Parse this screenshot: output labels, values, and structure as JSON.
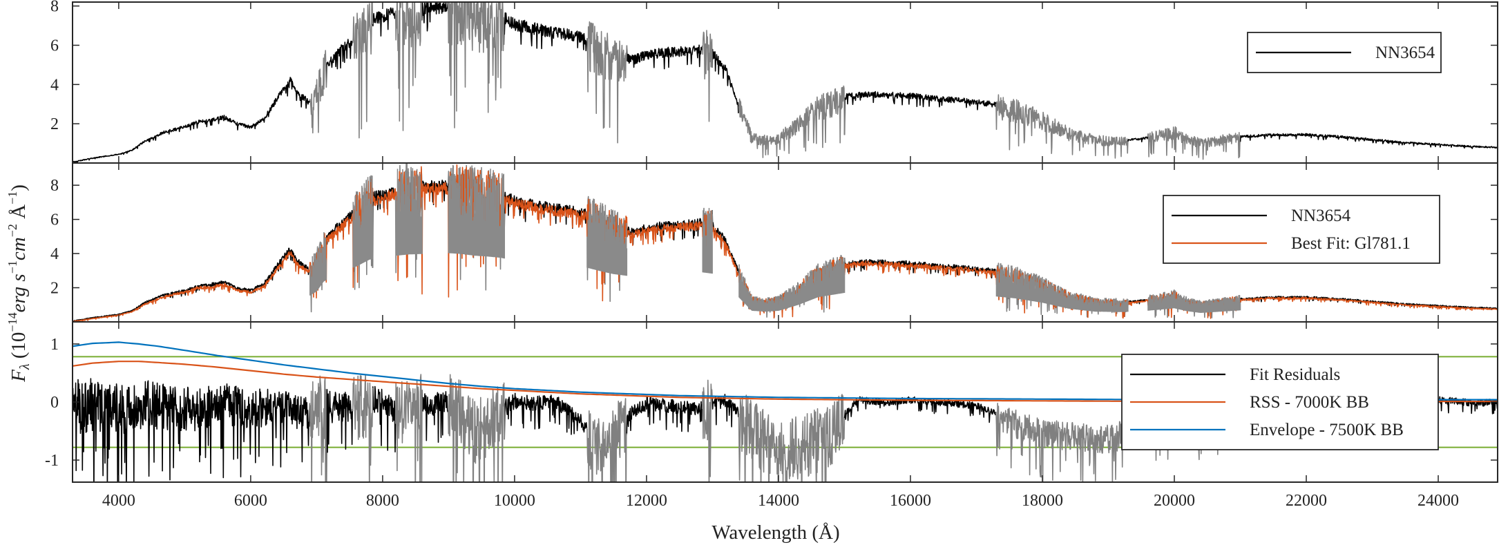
{
  "chart_data": {
    "type": "line",
    "xlabel": "Wavelength (Å)",
    "ylabel": {
      "prefix": "F",
      "sub": "λ",
      "body": " (10",
      "exp1": "−14",
      "unit1": "erg s",
      "exp2": "−1",
      "unit2": "cm",
      "exp3": "−2",
      "unit3": " Å",
      "exp4": "−1",
      "close": ")"
    },
    "xlim": [
      3300,
      24900
    ],
    "xticks": [
      4000,
      6000,
      8000,
      10000,
      12000,
      14000,
      16000,
      18000,
      20000,
      22000,
      24000
    ],
    "xtick_labels": [
      "4000",
      "6000",
      "8000",
      "10000",
      "12000",
      "14000",
      "16000",
      "18000",
      "20000",
      "22000",
      "24000"
    ],
    "gray_regions": [
      [
        6900,
        7150
      ],
      [
        7550,
        7850
      ],
      [
        8200,
        8600
      ],
      [
        9000,
        9850
      ],
      [
        11100,
        11700
      ],
      [
        12850,
        13000
      ],
      [
        13400,
        15000
      ],
      [
        17300,
        19300
      ],
      [
        19600,
        21000
      ]
    ],
    "panels": [
      {
        "ylim": [
          0,
          8.2
        ],
        "yticks": [
          2,
          4,
          6,
          8
        ],
        "ytick_labels": [
          "2",
          "4",
          "6",
          "8"
        ],
        "legend": {
          "placement": "top-right",
          "entries": [
            {
              "label": "NN3654",
              "color": "#000000"
            }
          ]
        },
        "series": [
          {
            "name": "NN3654",
            "color": "#000000",
            "x": [
              3300,
              3600,
              4000,
              4200,
              4400,
              4700,
              5000,
              5200,
              5400,
              5600,
              5800,
              6000,
              6200,
              6400,
              6500,
              6600,
              6700,
              6900,
              7000,
              7100,
              7200,
              7400,
              7600,
              7800,
              8000,
              8200,
              8400,
              8600,
              8800,
              9000,
              9200,
              9400,
              9600,
              9800,
              10000,
              10300,
              10600,
              10900,
              11100,
              11300,
              11500,
              11800,
              12000,
              12300,
              12600,
              12800,
              13000,
              13200,
              13400,
              13600,
              13800,
              14000,
              14300,
              14600,
              15000,
              15300,
              15600,
              16000,
              16400,
              16800,
              17200,
              17600,
              18000,
              18400,
              18800,
              19200,
              19500,
              19800,
              20000,
              20200,
              20400,
              20700,
              21000,
              21500,
              22000,
              22500,
              23000,
              23500,
              24000,
              24500,
              24900
            ],
            "y": [
              0.05,
              0.25,
              0.45,
              0.65,
              1.15,
              1.6,
              1.85,
              2.1,
              2.2,
              2.35,
              2.0,
              1.85,
              2.25,
              3.3,
              3.8,
              4.3,
              3.6,
              3.1,
              3.6,
              4.7,
              5.2,
              5.9,
              6.5,
              7.3,
              7.5,
              7.75,
              7.9,
              7.95,
              8.0,
              8.05,
              7.95,
              7.75,
              7.65,
              7.5,
              7.15,
              6.9,
              6.7,
              6.55,
              6.35,
              5.95,
              5.6,
              5.3,
              5.55,
              5.7,
              5.75,
              5.85,
              5.65,
              4.8,
              2.9,
              1.3,
              1.2,
              1.3,
              2.0,
              2.9,
              3.4,
              3.55,
              3.5,
              3.45,
              3.3,
              3.2,
              3.05,
              2.75,
              2.25,
              1.55,
              1.2,
              1.15,
              1.25,
              1.45,
              1.6,
              1.25,
              1.05,
              1.2,
              1.35,
              1.45,
              1.45,
              1.35,
              1.2,
              1.05,
              0.95,
              0.85,
              0.8
            ]
          }
        ]
      },
      {
        "ylim": [
          0,
          9.3
        ],
        "yticks": [
          2,
          4,
          6,
          8
        ],
        "ytick_labels": [
          "2",
          "4",
          "6",
          "8"
        ],
        "legend": {
          "placement": "top-right",
          "entries": [
            {
              "label": "NN3654",
              "color": "#000000"
            },
            {
              "label": "Best Fit: Gl781.1",
              "color": "#d95319"
            }
          ]
        },
        "series": [
          {
            "name": "NN3654",
            "color": "#000000",
            "x": [
              3300,
              3600,
              4000,
              4200,
              4400,
              4700,
              5000,
              5200,
              5400,
              5600,
              5800,
              6000,
              6200,
              6400,
              6500,
              6600,
              6700,
              6900,
              7000,
              7100,
              7200,
              7400,
              7600,
              7800,
              8000,
              8200,
              8400,
              8600,
              8800,
              9000,
              9200,
              9400,
              9600,
              9800,
              10000,
              10300,
              10600,
              10900,
              11100,
              11300,
              11500,
              11800,
              12000,
              12300,
              12600,
              12800,
              13000,
              13200,
              13400,
              13600,
              13800,
              14000,
              14300,
              14600,
              15000,
              15300,
              15600,
              16000,
              16400,
              16800,
              17200,
              17600,
              18000,
              18400,
              18800,
              19200,
              19500,
              19800,
              20000,
              20200,
              20400,
              20700,
              21000,
              21500,
              22000,
              22500,
              23000,
              23500,
              24000,
              24500,
              24900
            ],
            "y": [
              0.05,
              0.25,
              0.45,
              0.65,
              1.15,
              1.6,
              1.85,
              2.1,
              2.2,
              2.35,
              2.0,
              1.85,
              2.25,
              3.3,
              3.8,
              4.3,
              3.6,
              3.1,
              3.6,
              4.7,
              5.2,
              5.9,
              6.5,
              7.3,
              7.5,
              7.75,
              7.9,
              7.95,
              8.0,
              8.05,
              7.95,
              7.75,
              7.65,
              7.5,
              7.15,
              6.9,
              6.7,
              6.55,
              6.35,
              5.95,
              5.6,
              5.3,
              5.55,
              5.7,
              5.75,
              5.85,
              5.65,
              4.8,
              2.9,
              1.3,
              1.2,
              1.3,
              2.0,
              2.9,
              3.4,
              3.55,
              3.5,
              3.45,
              3.3,
              3.2,
              3.05,
              2.75,
              2.25,
              1.55,
              1.2,
              1.15,
              1.25,
              1.45,
              1.6,
              1.25,
              1.05,
              1.2,
              1.35,
              1.45,
              1.45,
              1.35,
              1.2,
              1.05,
              0.95,
              0.85,
              0.8
            ]
          },
          {
            "name": "Best Fit: Gl781.1",
            "color": "#d95319",
            "x": [
              3300,
              3600,
              4000,
              4200,
              4400,
              4700,
              5000,
              5200,
              5400,
              5600,
              5800,
              6000,
              6200,
              6400,
              6500,
              6600,
              6700,
              6900,
              7000,
              7100,
              7200,
              7400,
              7600,
              7800,
              8000,
              8200,
              8400,
              8600,
              8800,
              9000,
              9200,
              9400,
              9600,
              9800,
              10000,
              10300,
              10600,
              10900,
              11100,
              11300,
              11500,
              11800,
              12000,
              12300,
              12600,
              12800,
              13000,
              13200,
              13400,
              13600,
              13800,
              14000,
              14300,
              14600,
              15000,
              15300,
              15600,
              16000,
              16400,
              16800,
              17200,
              17600,
              18000,
              18400,
              18800,
              19200,
              19500,
              19800,
              20000,
              20200,
              20400,
              20700,
              21000,
              21500,
              22000,
              22500,
              23000,
              23500,
              24000,
              24500,
              24900
            ],
            "y": [
              0.02,
              0.2,
              0.4,
              0.6,
              1.05,
              1.5,
              1.75,
              2.0,
              2.05,
              2.2,
              1.85,
              1.75,
              2.1,
              3.1,
              3.6,
              4.05,
              3.4,
              2.95,
              3.4,
              4.5,
              5.0,
              5.7,
              6.3,
              7.05,
              7.3,
              7.55,
              7.7,
              7.8,
              7.85,
              7.9,
              7.8,
              7.6,
              7.5,
              7.35,
              7.0,
              6.75,
              6.55,
              6.4,
              6.2,
              5.8,
              5.45,
              5.15,
              5.4,
              5.55,
              5.6,
              5.7,
              5.5,
              4.6,
              2.75,
              1.25,
              1.15,
              1.25,
              1.9,
              2.8,
              3.3,
              3.45,
              3.4,
              3.35,
              3.2,
              3.1,
              2.95,
              2.65,
              2.15,
              1.5,
              1.15,
              1.1,
              1.2,
              1.4,
              1.55,
              1.2,
              1.0,
              1.15,
              1.3,
              1.4,
              1.4,
              1.3,
              1.15,
              1.0,
              0.9,
              0.8,
              0.75
            ]
          }
        ]
      },
      {
        "ylim": [
          -1.38,
          1.38
        ],
        "yticks": [
          -1,
          0,
          1
        ],
        "ytick_labels": [
          "-1",
          "0",
          "1"
        ],
        "hlines": {
          "values": [
            -0.78,
            0.78
          ],
          "color": "#77ac30"
        },
        "legend": {
          "placement": "center-right",
          "entries": [
            {
              "label": "Fit Residuals",
              "color": "#000000"
            },
            {
              "label": "RSS - 7000K BB",
              "color": "#d95319"
            },
            {
              "label": "Envelope - 7500K BB",
              "color": "#0072bd"
            }
          ]
        },
        "series": [
          {
            "name": "Fit Residuals",
            "color": "#000000",
            "x": [
              3300,
              3600,
              4000,
              4400,
              4800,
              5200,
              5600,
              6000,
              6400,
              6800,
              7000,
              7300,
              7600,
              7900,
              8200,
              8500,
              8800,
              9100,
              9400,
              9700,
              10000,
              10300,
              10600,
              11000,
              11300,
              11600,
              12000,
              12400,
              12800,
              13200,
              13600,
              14000,
              14400,
              14800,
              15200,
              15600,
              16000,
              16500,
              17000,
              17500,
              18000,
              18500,
              19000,
              19500,
              20000,
              20500,
              21000,
              21500,
              22000,
              22500,
              23000,
              23500,
              24000,
              24500,
              24900
            ],
            "y": [
              0.0,
              0.05,
              -0.05,
              0.05,
              0.0,
              -0.05,
              0.05,
              -0.05,
              0.0,
              -0.15,
              0.05,
              -0.05,
              0.0,
              0.1,
              -0.1,
              0.05,
              0.0,
              0.05,
              -0.4,
              -0.2,
              0.05,
              0.0,
              0.05,
              -0.3,
              -0.75,
              -0.3,
              0.0,
              -0.05,
              -0.1,
              0.05,
              -0.4,
              -0.75,
              -0.65,
              -0.45,
              0.05,
              0.0,
              0.05,
              0.0,
              -0.05,
              -0.3,
              -0.5,
              -0.55,
              -0.6,
              -0.4,
              -0.2,
              -0.15,
              -0.1,
              -0.05,
              0.0,
              0.0,
              0.05,
              0.0,
              0.05,
              0.0,
              0.0
            ]
          },
          {
            "name": "RSS - 7000K BB",
            "color": "#d95319",
            "x": [
              3300,
              3600,
              4000,
              4300,
              4600,
              5000,
              5500,
              6000,
              6500,
              7000,
              7500,
              8000,
              8500,
              9000,
              9500,
              10000,
              10500,
              11000,
              11500,
              12000,
              12500,
              13000,
              14000,
              16000,
              18000,
              20000
            ],
            "y": [
              0.62,
              0.67,
              0.7,
              0.7,
              0.68,
              0.65,
              0.6,
              0.54,
              0.48,
              0.43,
              0.39,
              0.35,
              0.31,
              0.27,
              0.23,
              0.2,
              0.17,
              0.14,
              0.12,
              0.1,
              0.08,
              0.07,
              0.05,
              0.03,
              0.02,
              0.01
            ]
          },
          {
            "name": "Envelope - 7500K BB",
            "color": "#0072bd",
            "x": [
              3300,
              3600,
              4000,
              4300,
              4600,
              5000,
              5500,
              6000,
              6500,
              7000,
              7500,
              8000,
              8500,
              9000,
              9500,
              10000,
              10500,
              11000,
              11500,
              12000,
              12500,
              13000,
              14000,
              16000,
              18000,
              20000
            ],
            "y": [
              0.96,
              1.01,
              1.03,
              1.0,
              0.96,
              0.89,
              0.8,
              0.72,
              0.64,
              0.57,
              0.5,
              0.44,
              0.38,
              0.32,
              0.27,
              0.23,
              0.2,
              0.17,
              0.15,
              0.13,
              0.11,
              0.1,
              0.08,
              0.06,
              0.05,
              0.04
            ]
          }
        ]
      }
    ]
  }
}
